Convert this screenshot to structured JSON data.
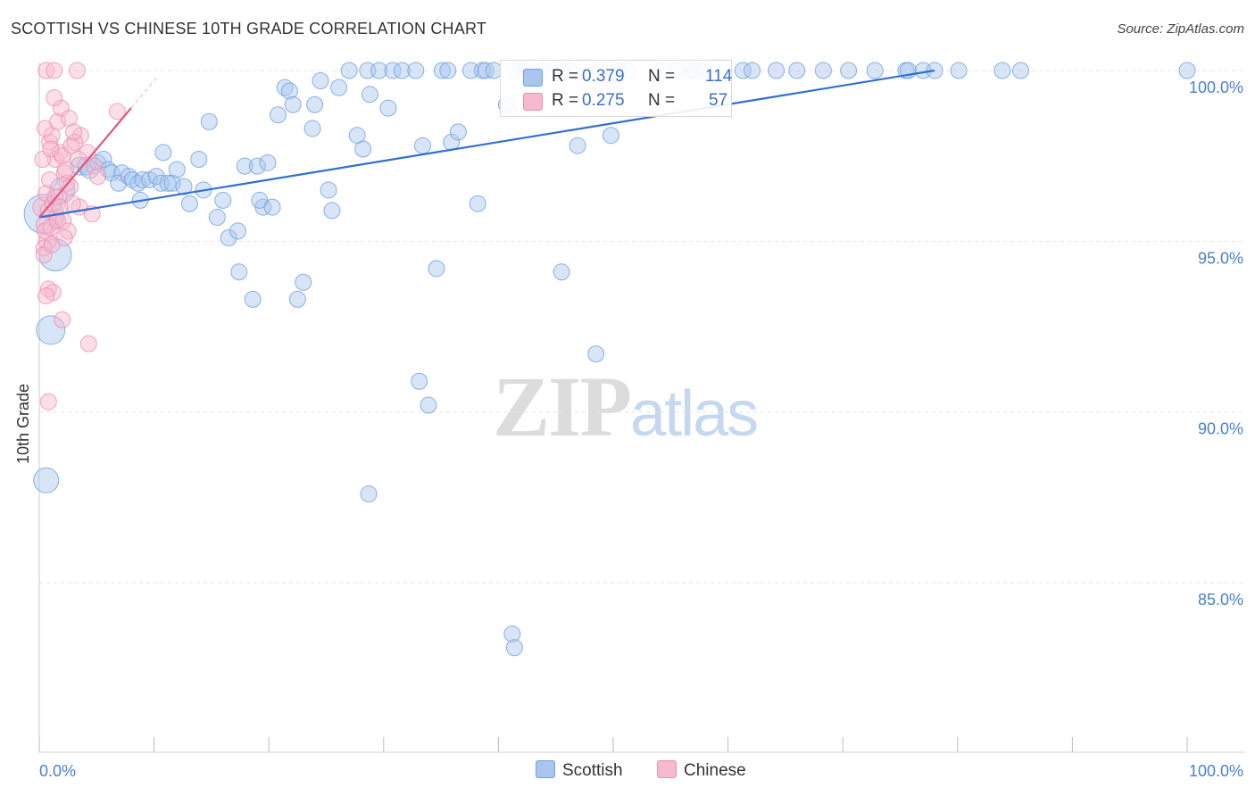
{
  "title": "SCOTTISH VS CHINESE 10TH GRADE CORRELATION CHART",
  "source": "Source: ZipAtlas.com",
  "watermark": {
    "zip": "ZIP",
    "atlas": "atlas"
  },
  "legend": {
    "r_label": "R =",
    "n_label": "N =",
    "rows": [
      {
        "r": "0.379",
        "n": "114"
      },
      {
        "r": "0.275",
        "n": "57"
      }
    ]
  },
  "bottom_legend": [
    "Scottish",
    "Chinese"
  ],
  "colors": {
    "scottish_fill": "#a9c6ee",
    "scottish_stroke": "#6f9fdc",
    "scottish_line": "#2f6fd0",
    "chinese_fill": "#f6b9cd",
    "chinese_stroke": "#ec8fae",
    "chinese_line": "#e0567f",
    "tick_text": "#4a7fd0",
    "grid": "#e3e3e3"
  },
  "chart_data": {
    "type": "scatter",
    "title": "SCOTTISH VS CHINESE 10TH GRADE CORRELATION CHART",
    "xlabel": "",
    "ylabel": "10th Grade",
    "xlim": [
      0,
      100
    ],
    "ylim": [
      80.0,
      100.5
    ],
    "y_ticks": [
      {
        "v": 100,
        "label": "100.0%"
      },
      {
        "v": 95,
        "label": "95.0%"
      },
      {
        "v": 90,
        "label": "90.0%"
      },
      {
        "v": 85,
        "label": "85.0%"
      }
    ],
    "x_tick_labels": [
      {
        "v": 0,
        "label": "0.0%"
      },
      {
        "v": 100,
        "label": "100.0%"
      }
    ],
    "x_minor_ticks": [
      0,
      10,
      20,
      30,
      40,
      50,
      60,
      70,
      80,
      90,
      100
    ],
    "series": [
      {
        "name": "Scottish",
        "r": 0.379,
        "n": 114,
        "trend": {
          "x1": 0,
          "y1": 95.7,
          "x2": 78,
          "y2": 100.0
        },
        "points": [
          [
            0.4,
            95.8,
            22
          ],
          [
            1.4,
            94.6,
            18
          ],
          [
            1.0,
            92.4,
            16
          ],
          [
            0.6,
            88.0,
            14
          ],
          [
            2.0,
            96.5,
            14
          ],
          [
            3.5,
            97.2,
            10
          ],
          [
            4.1,
            97.2,
            10
          ],
          [
            4.4,
            97.1,
            10
          ],
          [
            5.1,
            97.3,
            9
          ],
          [
            5.6,
            97.4,
            9
          ],
          [
            6.0,
            97.1,
            9
          ],
          [
            6.3,
            97.0,
            9
          ],
          [
            7.2,
            97.0,
            9
          ],
          [
            6.9,
            96.7,
            9
          ],
          [
            7.8,
            96.9,
            9
          ],
          [
            8.1,
            96.8,
            9
          ],
          [
            8.6,
            96.7,
            9
          ],
          [
            9.0,
            96.8,
            9
          ],
          [
            8.8,
            96.2,
            9
          ],
          [
            9.6,
            96.8,
            9
          ],
          [
            10.2,
            96.9,
            9
          ],
          [
            10.6,
            96.7,
            9
          ],
          [
            11.2,
            96.7,
            9
          ],
          [
            11.6,
            96.7,
            9
          ],
          [
            12.0,
            97.1,
            9
          ],
          [
            12.6,
            96.6,
            9
          ],
          [
            13.1,
            96.1,
            9
          ],
          [
            10.8,
            97.6,
            9
          ],
          [
            13.9,
            97.4,
            9
          ],
          [
            14.3,
            96.5,
            9
          ],
          [
            14.8,
            98.5,
            9
          ],
          [
            15.5,
            95.7,
            9
          ],
          [
            16.0,
            96.2,
            9
          ],
          [
            16.5,
            95.1,
            9
          ],
          [
            17.3,
            95.3,
            9
          ],
          [
            17.4,
            94.1,
            9
          ],
          [
            17.9,
            97.2,
            9
          ],
          [
            18.6,
            93.3,
            9
          ],
          [
            19.0,
            97.2,
            9
          ],
          [
            19.5,
            96.0,
            9
          ],
          [
            19.2,
            96.2,
            9
          ],
          [
            19.9,
            97.3,
            9
          ],
          [
            20.3,
            96.0,
            9
          ],
          [
            20.8,
            98.7,
            9
          ],
          [
            21.4,
            99.5,
            9
          ],
          [
            21.8,
            99.4,
            9
          ],
          [
            22.1,
            99.0,
            9
          ],
          [
            22.5,
            93.3,
            9
          ],
          [
            23.0,
            93.8,
            9
          ],
          [
            23.8,
            98.3,
            9
          ],
          [
            24.0,
            99.0,
            9
          ],
          [
            24.5,
            99.7,
            9
          ],
          [
            25.2,
            96.5,
            9
          ],
          [
            25.5,
            95.9,
            9
          ],
          [
            26.1,
            99.5,
            9
          ],
          [
            27.0,
            100.0,
            9
          ],
          [
            27.7,
            98.1,
            9
          ],
          [
            28.2,
            97.7,
            9
          ],
          [
            28.6,
            100.0,
            9
          ],
          [
            28.8,
            99.3,
            9
          ],
          [
            29.6,
            100.0,
            9
          ],
          [
            30.4,
            98.9,
            9
          ],
          [
            30.8,
            100.0,
            9
          ],
          [
            31.6,
            100.0,
            9
          ],
          [
            33.1,
            90.9,
            9
          ],
          [
            32.8,
            100.0,
            9
          ],
          [
            33.4,
            97.8,
            9
          ],
          [
            33.9,
            90.2,
            9
          ],
          [
            34.6,
            94.2,
            9
          ],
          [
            35.1,
            100.0,
            9
          ],
          [
            35.6,
            100.0,
            9
          ],
          [
            35.9,
            97.9,
            9
          ],
          [
            36.5,
            98.2,
            9
          ],
          [
            37.6,
            100.0,
            9
          ],
          [
            38.2,
            96.1,
            9
          ],
          [
            38.6,
            100.0,
            9
          ],
          [
            38.9,
            100.0,
            9
          ],
          [
            39.6,
            100.0,
            9
          ],
          [
            40.7,
            99.0,
            9
          ],
          [
            41.4,
            100.0,
            9
          ],
          [
            42.2,
            100.0,
            9
          ],
          [
            43.8,
            100.0,
            9
          ],
          [
            45.6,
            100.0,
            9
          ],
          [
            46.2,
            100.0,
            9
          ],
          [
            48.8,
            100.0,
            9
          ],
          [
            50.5,
            100.0,
            9
          ],
          [
            51.2,
            100.0,
            9
          ],
          [
            54.2,
            100.0,
            9
          ],
          [
            55.6,
            100.0,
            9
          ],
          [
            56.9,
            100.0,
            9
          ],
          [
            57.2,
            100.0,
            9
          ],
          [
            58.0,
            100.0,
            9
          ],
          [
            61.3,
            100.0,
            9
          ],
          [
            62.1,
            100.0,
            9
          ],
          [
            64.2,
            100.0,
            9
          ],
          [
            66.0,
            100.0,
            9
          ],
          [
            68.3,
            100.0,
            9
          ],
          [
            70.5,
            100.0,
            9
          ],
          [
            72.8,
            100.0,
            9
          ],
          [
            75.5,
            100.0,
            9
          ],
          [
            75.7,
            100.0,
            9
          ],
          [
            77.0,
            100.0,
            9
          ],
          [
            78.0,
            100.0,
            9
          ],
          [
            80.1,
            100.0,
            9
          ],
          [
            83.9,
            100.0,
            9
          ],
          [
            85.5,
            100.0,
            9
          ],
          [
            100.0,
            100.0,
            9
          ],
          [
            28.7,
            87.6,
            9
          ],
          [
            41.2,
            83.5,
            9
          ],
          [
            41.4,
            83.1,
            9
          ],
          [
            46.9,
            97.8,
            9
          ],
          [
            49.8,
            98.1,
            9
          ],
          [
            45.5,
            94.1,
            9
          ],
          [
            48.5,
            91.7,
            9
          ]
        ]
      },
      {
        "name": "Chinese",
        "r": 0.275,
        "n": 57,
        "trend": {
          "x1": 0,
          "y1": 95.7,
          "x2": 8.0,
          "y2": 98.9
        },
        "points": [
          [
            0.3,
            96.0,
            11
          ],
          [
            0.5,
            95.5,
            10
          ],
          [
            0.7,
            95.0,
            10
          ],
          [
            0.4,
            94.8,
            9
          ],
          [
            0.8,
            95.9,
            9
          ],
          [
            0.6,
            96.4,
            9
          ],
          [
            1.2,
            96.1,
            9
          ],
          [
            1.5,
            95.7,
            9
          ],
          [
            0.9,
            97.9,
            9
          ],
          [
            1.1,
            98.1,
            9
          ],
          [
            1.4,
            97.4,
            9
          ],
          [
            1.8,
            97.6,
            9
          ],
          [
            2.0,
            97.5,
            9
          ],
          [
            2.2,
            97.0,
            9
          ],
          [
            2.4,
            96.7,
            9
          ],
          [
            0.5,
            98.3,
            9
          ],
          [
            1.6,
            98.5,
            9
          ],
          [
            1.9,
            98.9,
            9
          ],
          [
            2.6,
            98.6,
            9
          ],
          [
            1.3,
            99.2,
            9
          ],
          [
            0.6,
            100.0,
            9
          ],
          [
            1.3,
            100.0,
            9
          ],
          [
            3.3,
            100.0,
            9
          ],
          [
            3.6,
            98.1,
            9
          ],
          [
            2.8,
            97.8,
            9
          ],
          [
            3.1,
            97.9,
            9
          ],
          [
            4.2,
            97.6,
            9
          ],
          [
            4.8,
            97.2,
            9
          ],
          [
            5.1,
            96.9,
            9
          ],
          [
            0.8,
            93.6,
            9
          ],
          [
            1.2,
            93.5,
            9
          ],
          [
            0.6,
            93.4,
            9
          ],
          [
            2.0,
            92.7,
            9
          ],
          [
            4.3,
            92.0,
            9
          ],
          [
            0.8,
            90.3,
            9
          ],
          [
            0.5,
            95.3,
            9
          ],
          [
            1.0,
            95.4,
            9
          ],
          [
            1.6,
            95.6,
            9
          ],
          [
            2.1,
            95.6,
            9
          ],
          [
            2.5,
            95.3,
            9
          ],
          [
            3.5,
            96.0,
            9
          ],
          [
            4.6,
            95.8,
            9
          ],
          [
            0.9,
            96.8,
            9
          ],
          [
            1.7,
            96.3,
            9
          ],
          [
            2.9,
            96.1,
            9
          ],
          [
            0.3,
            97.4,
            9
          ],
          [
            1.0,
            97.7,
            9
          ],
          [
            2.3,
            97.1,
            9
          ],
          [
            3.4,
            97.4,
            9
          ],
          [
            6.8,
            98.8,
            9
          ],
          [
            0.4,
            94.6,
            9
          ],
          [
            1.1,
            94.9,
            9
          ],
          [
            2.2,
            95.1,
            9
          ],
          [
            1.4,
            96.3,
            9
          ],
          [
            1.8,
            96.0,
            9
          ],
          [
            2.7,
            96.6,
            9
          ],
          [
            3.0,
            98.2,
            9
          ]
        ]
      }
    ]
  }
}
